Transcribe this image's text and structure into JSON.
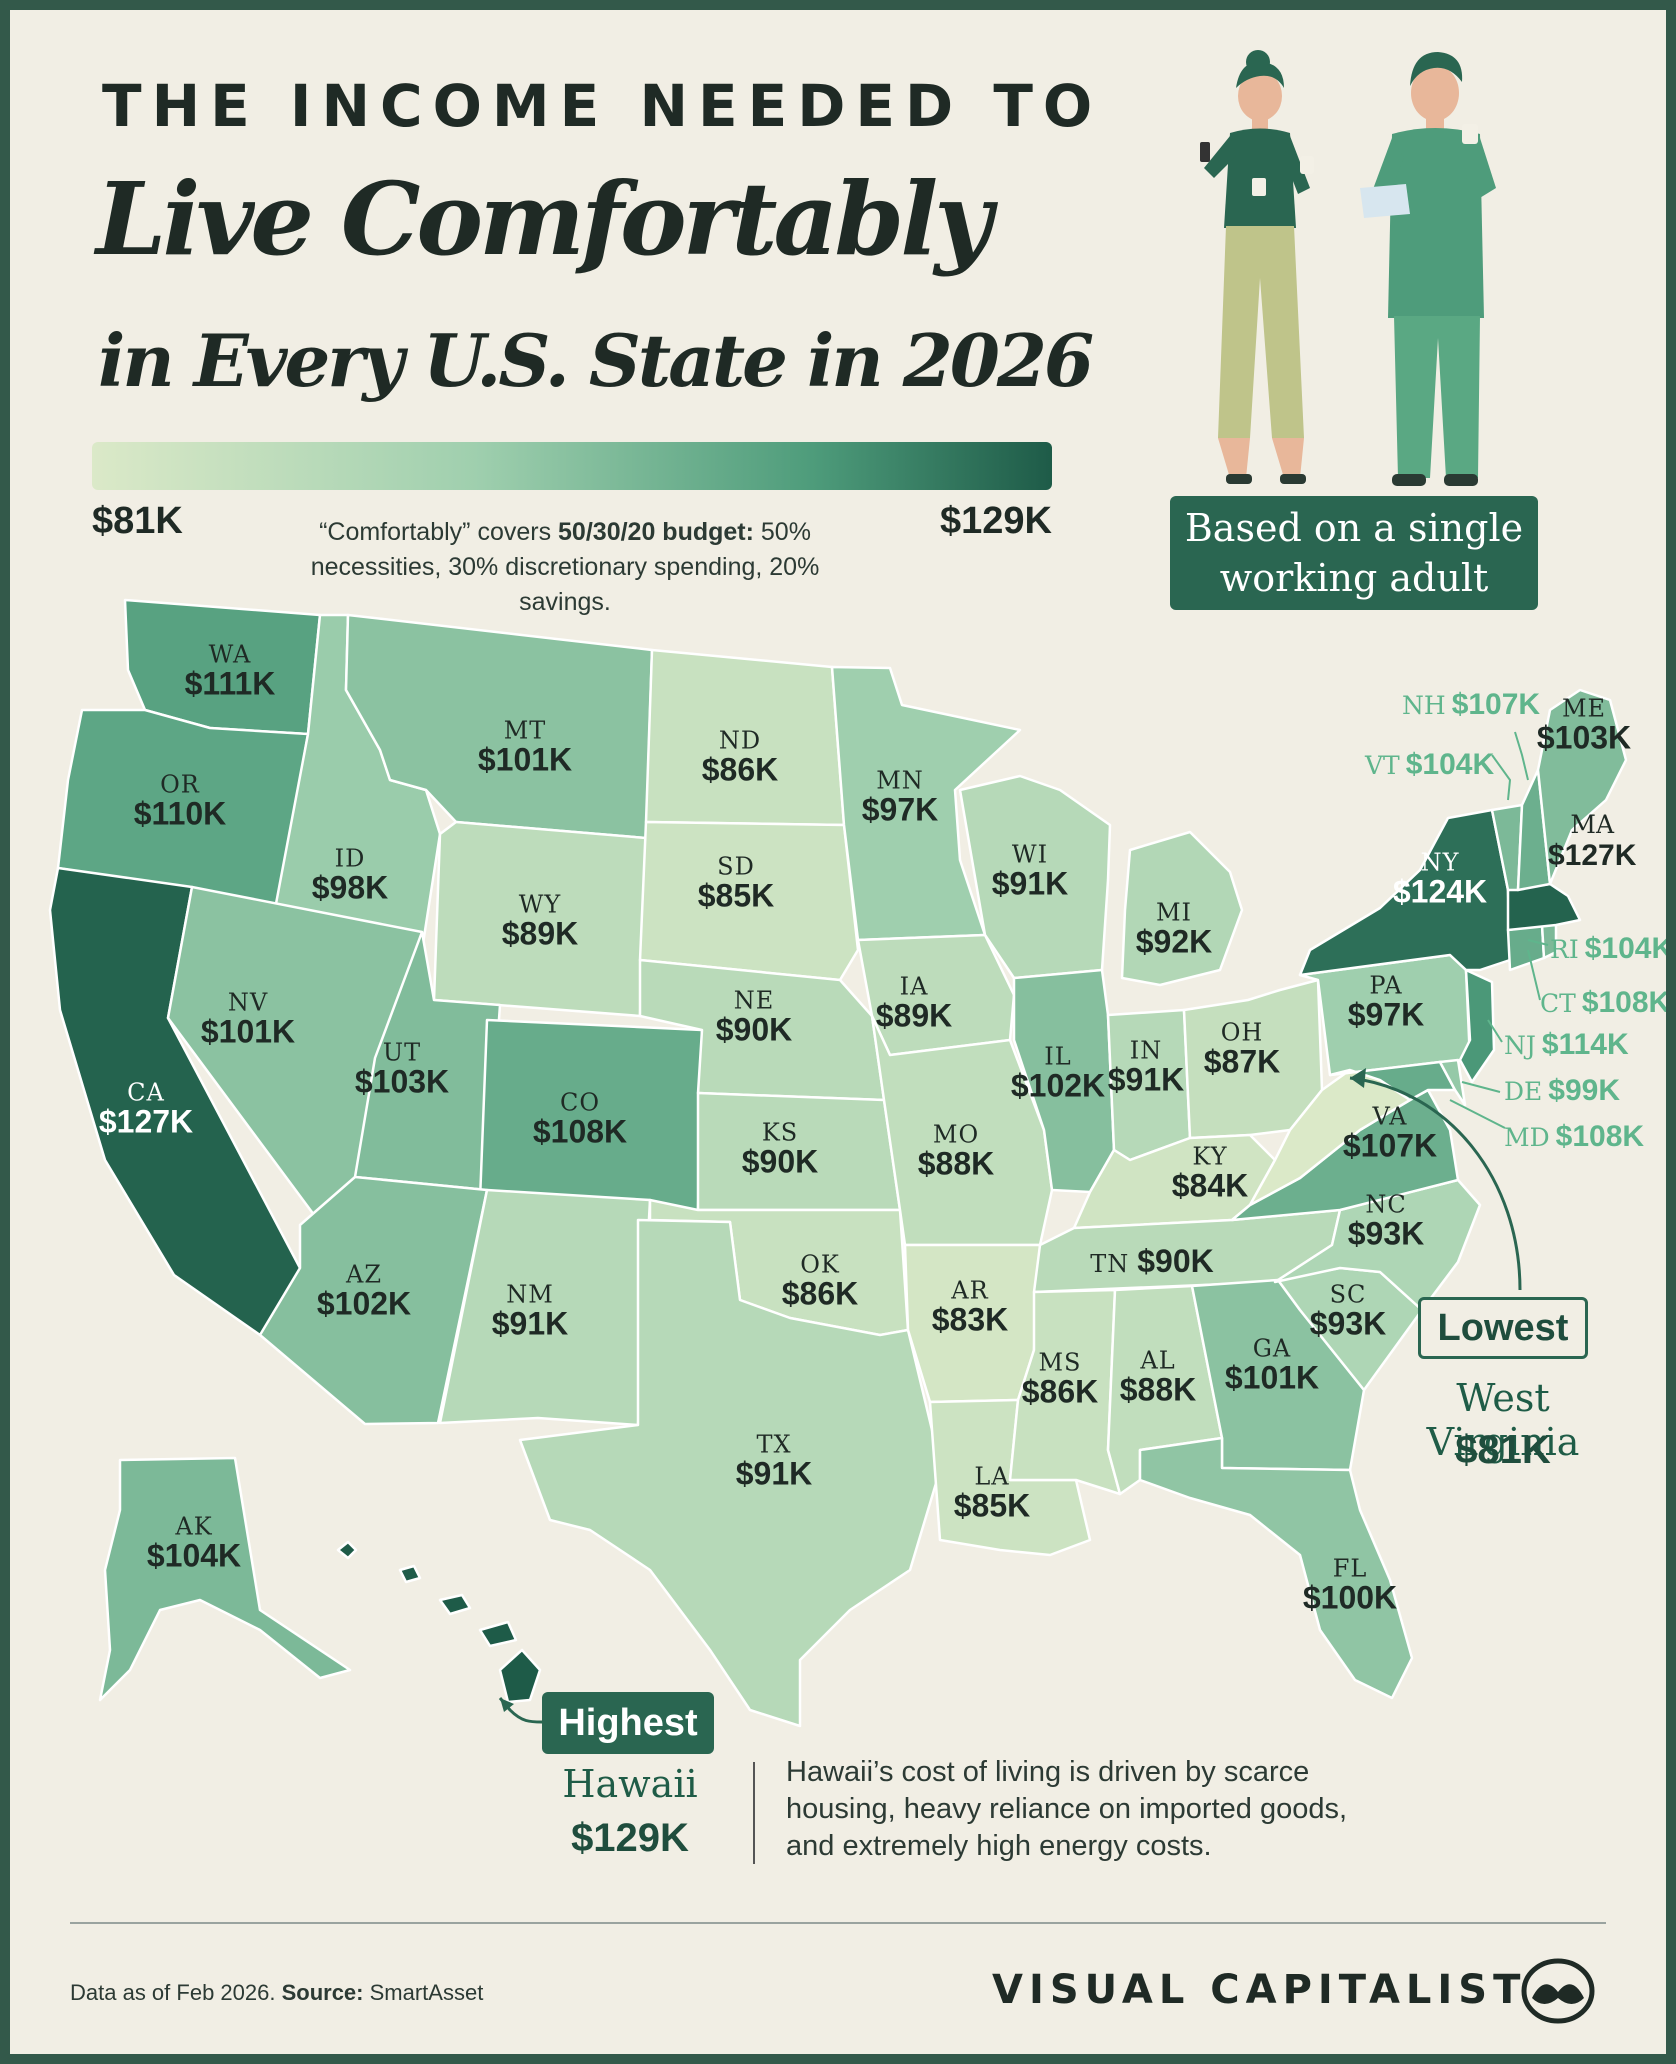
{
  "title": {
    "line1": "THE INCOME NEEDED TO",
    "line2": "Live Comfortably",
    "line3": "in Every U.S. State in 2026"
  },
  "scale": {
    "min": "$81K",
    "max": "$129K",
    "min_value": 81,
    "max_value": 129,
    "colors": [
      "#dbe9c8",
      "#9fcfae",
      "#4e9c7b",
      "#1e5b48"
    ]
  },
  "note": {
    "prefix": "“Comfortably” covers ",
    "bold": "50/30/20 budget:",
    "rest": " 50% necessities, 30% discretionary spending, 20% savings."
  },
  "badge": {
    "line1": "Based on a single",
    "line2": "working adult"
  },
  "states": [
    {
      "code": "WA",
      "value": "$111K",
      "income": 111
    },
    {
      "code": "OR",
      "value": "$110K",
      "income": 110
    },
    {
      "code": "CA",
      "value": "$127K",
      "income": 127
    },
    {
      "code": "ID",
      "value": "$98K",
      "income": 98
    },
    {
      "code": "NV",
      "value": "$101K",
      "income": 101
    },
    {
      "code": "MT",
      "value": "$101K",
      "income": 101
    },
    {
      "code": "WY",
      "value": "$89K",
      "income": 89
    },
    {
      "code": "UT",
      "value": "$103K",
      "income": 103
    },
    {
      "code": "AZ",
      "value": "$102K",
      "income": 102
    },
    {
      "code": "CO",
      "value": "$108K",
      "income": 108
    },
    {
      "code": "NM",
      "value": "$91K",
      "income": 91
    },
    {
      "code": "ND",
      "value": "$86K",
      "income": 86
    },
    {
      "code": "SD",
      "value": "$85K",
      "income": 85
    },
    {
      "code": "NE",
      "value": "$90K",
      "income": 90
    },
    {
      "code": "KS",
      "value": "$90K",
      "income": 90
    },
    {
      "code": "OK",
      "value": "$86K",
      "income": 86
    },
    {
      "code": "TX",
      "value": "$91K",
      "income": 91
    },
    {
      "code": "MN",
      "value": "$97K",
      "income": 97
    },
    {
      "code": "IA",
      "value": "$89K",
      "income": 89
    },
    {
      "code": "MO",
      "value": "$88K",
      "income": 88
    },
    {
      "code": "AR",
      "value": "$83K",
      "income": 83
    },
    {
      "code": "LA",
      "value": "$85K",
      "income": 85
    },
    {
      "code": "WI",
      "value": "$91K",
      "income": 91
    },
    {
      "code": "IL",
      "value": "$102K",
      "income": 102
    },
    {
      "code": "MI",
      "value": "$92K",
      "income": 92
    },
    {
      "code": "IN",
      "value": "$91K",
      "income": 91
    },
    {
      "code": "OH",
      "value": "$87K",
      "income": 87
    },
    {
      "code": "KY",
      "value": "$84K",
      "income": 84
    },
    {
      "code": "TN",
      "value": "$90K",
      "income": 90
    },
    {
      "code": "MS",
      "value": "$86K",
      "income": 86
    },
    {
      "code": "AL",
      "value": "$88K",
      "income": 88
    },
    {
      "code": "GA",
      "value": "$101K",
      "income": 101
    },
    {
      "code": "FL",
      "value": "$100K",
      "income": 100
    },
    {
      "code": "SC",
      "value": "$93K",
      "income": 93
    },
    {
      "code": "NC",
      "value": "$93K",
      "income": 93
    },
    {
      "code": "VA",
      "value": "$107K",
      "income": 107
    },
    {
      "code": "PA",
      "value": "$97K",
      "income": 97
    },
    {
      "code": "NY",
      "value": "$124K",
      "income": 124
    },
    {
      "code": "ME",
      "value": "$103K",
      "income": 103
    },
    {
      "code": "AK",
      "value": "$104K",
      "income": 104
    },
    {
      "code": "WV",
      "value": "$81K",
      "income": 81
    },
    {
      "code": "HI",
      "value": "$129K",
      "income": 129
    }
  ],
  "side_states": [
    {
      "code": "NH",
      "value": "$107K"
    },
    {
      "code": "VT",
      "value": "$104K"
    },
    {
      "code": "MA",
      "value": "$127K"
    },
    {
      "code": "RI",
      "value": "$104K"
    },
    {
      "code": "CT",
      "value": "$108K"
    },
    {
      "code": "NJ",
      "value": "$114K"
    },
    {
      "code": "DE",
      "value": "$99K"
    },
    {
      "code": "MD",
      "value": "$108K"
    }
  ],
  "lowest": {
    "label": "Lowest",
    "name": "West Virginia",
    "value": "$81K"
  },
  "highest": {
    "label": "Highest",
    "name": "Hawaii",
    "value": "$129K",
    "description": "Hawaii’s cost of living is driven by scarce housing, heavy reliance on imported goods, and extremely high energy costs."
  },
  "footer": {
    "data_note": "Data as of Feb 2026. ",
    "source_label": "Source:",
    "source": " SmartAsset",
    "brand": "VISUAL CAPITALIST"
  }
}
